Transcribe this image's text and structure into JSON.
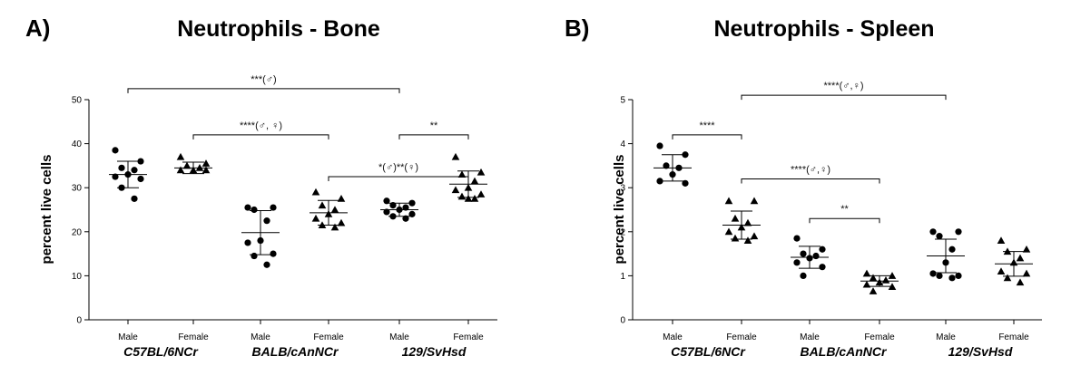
{
  "chart_data": [
    {
      "type": "scatter",
      "panel": "A)",
      "title": "Neutrophils - Bone",
      "ylabel": "percent live cells",
      "ylim": [
        0,
        50
      ],
      "yticks": [
        0,
        10,
        20,
        30,
        40,
        50
      ],
      "categories": [
        "Male",
        "Female",
        "Male",
        "Female",
        "Male",
        "Female"
      ],
      "strains": [
        "C57BL/6NCr",
        "BALB/cAnNCr",
        "129/SvHsd"
      ],
      "groups": [
        {
          "sex": "Male",
          "marker": "circle",
          "mean": 33.0,
          "sd": 3.0,
          "points": [
            38.5,
            36.0,
            34.5,
            34.0,
            33.0,
            32.5,
            32.0,
            30.0,
            27.5
          ]
        },
        {
          "sex": "Female",
          "marker": "triangle",
          "mean": 34.5,
          "sd": 1.3,
          "points": [
            37.0,
            35.5,
            35.0,
            34.5,
            34.0,
            34.0,
            34.0
          ]
        },
        {
          "sex": "Male",
          "marker": "circle",
          "mean": 19.8,
          "sd": 5.0,
          "points": [
            25.5,
            25.5,
            25.0,
            22.5,
            18.0,
            17.5,
            15.0,
            14.5,
            12.5
          ]
        },
        {
          "sex": "Female",
          "marker": "triangle",
          "mean": 24.3,
          "sd": 2.8,
          "points": [
            29.0,
            27.5,
            26.0,
            25.0,
            24.0,
            23.0,
            22.0,
            21.5,
            21.0
          ]
        },
        {
          "sex": "Male",
          "marker": "circle",
          "mean": 25.0,
          "sd": 1.5,
          "points": [
            27.0,
            26.5,
            26.0,
            25.5,
            25.0,
            24.5,
            24.0,
            23.5,
            23.0
          ]
        },
        {
          "sex": "Female",
          "marker": "triangle",
          "mean": 30.8,
          "sd": 3.0,
          "points": [
            37.0,
            33.5,
            33.0,
            31.5,
            30.0,
            29.5,
            28.5,
            28.0,
            27.5,
            27.5
          ]
        }
      ],
      "brackets": [
        {
          "from": 0,
          "to": 4,
          "y": 52.5,
          "label": "***(♂)"
        },
        {
          "from": 1,
          "to": 3,
          "y": 42.0,
          "label": "****(♂, ♀)"
        },
        {
          "from": 3,
          "to": 5,
          "y": 32.5,
          "label": "*(♂)**(♀)"
        },
        {
          "from": 4,
          "to": 5,
          "y": 42.0,
          "label": "**"
        }
      ]
    },
    {
      "type": "scatter",
      "panel": "B)",
      "title": "Neutrophils - Spleen",
      "ylabel": "percent live cells",
      "ylim": [
        0,
        5
      ],
      "yticks": [
        0,
        1,
        2,
        3,
        4,
        5
      ],
      "categories": [
        "Male",
        "Female",
        "Male",
        "Female",
        "Male",
        "Female"
      ],
      "strains": [
        "C57BL/6NCr",
        "BALB/cAnNCr",
        "129/SvHsd"
      ],
      "groups": [
        {
          "sex": "Male",
          "marker": "circle",
          "mean": 3.45,
          "sd": 0.3,
          "points": [
            3.95,
            3.75,
            3.5,
            3.45,
            3.3,
            3.15,
            3.1
          ]
        },
        {
          "sex": "Female",
          "marker": "triangle",
          "mean": 2.15,
          "sd": 0.32,
          "points": [
            2.7,
            2.7,
            2.3,
            2.2,
            2.1,
            2.0,
            1.9,
            1.85,
            1.8
          ]
        },
        {
          "sex": "Male",
          "marker": "circle",
          "mean": 1.42,
          "sd": 0.25,
          "points": [
            1.85,
            1.6,
            1.5,
            1.45,
            1.4,
            1.3,
            1.2,
            1.0
          ]
        },
        {
          "sex": "Female",
          "marker": "triangle",
          "mean": 0.88,
          "sd": 0.12,
          "points": [
            1.05,
            1.0,
            0.95,
            0.9,
            0.85,
            0.8,
            0.75,
            0.65
          ]
        },
        {
          "sex": "Male",
          "marker": "circle",
          "mean": 1.45,
          "sd": 0.38,
          "points": [
            2.0,
            2.0,
            1.9,
            1.6,
            1.3,
            1.05,
            1.0,
            1.0,
            0.95
          ]
        },
        {
          "sex": "Female",
          "marker": "triangle",
          "mean": 1.27,
          "sd": 0.28,
          "points": [
            1.8,
            1.6,
            1.55,
            1.4,
            1.3,
            1.1,
            1.05,
            0.95,
            0.85
          ]
        }
      ],
      "brackets": [
        {
          "from": 1,
          "to": 4,
          "y": 5.1,
          "label": "****(♂,♀)"
        },
        {
          "from": 0,
          "to": 1,
          "y": 4.2,
          "label": "****"
        },
        {
          "from": 1,
          "to": 3,
          "y": 3.2,
          "label": "****(♂,♀)"
        },
        {
          "from": 2,
          "to": 3,
          "y": 2.3,
          "label": "**"
        }
      ]
    }
  ]
}
